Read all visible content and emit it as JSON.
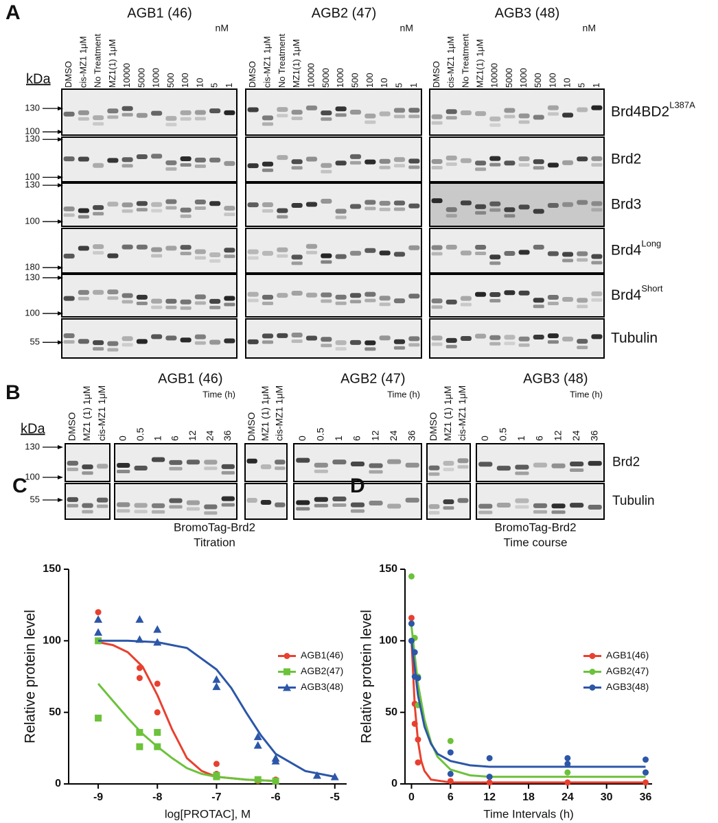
{
  "panel_a": {
    "letter": "A",
    "unit_kda": "kDa",
    "groups": [
      {
        "title": "AGB1 (46)",
        "unit": "nM"
      },
      {
        "title": "AGB2 (47)",
        "unit": "nM"
      },
      {
        "title": "AGB3 (48)",
        "unit": "nM"
      }
    ],
    "lanes": [
      "DMSO",
      "cis-MZ1 1μM",
      "No Treatment",
      "MZ1(1) 1μM",
      "10000",
      "5000",
      "1000",
      "500",
      "100",
      "10",
      "5",
      "1"
    ],
    "rows": [
      {
        "label": "Brd4BD2",
        "sup": "L387A",
        "markers": [
          130,
          100
        ]
      },
      {
        "label": "Brd2",
        "markers": [
          130,
          100
        ]
      },
      {
        "label": "Brd3",
        "markers": [
          130,
          100
        ]
      },
      {
        "label": "Brd4",
        "sup": "Long",
        "markers": [
          180
        ]
      },
      {
        "label": "Brd4",
        "sup": "Short",
        "markers": [
          130,
          100
        ]
      },
      {
        "label": "Tubulin",
        "markers": [
          55
        ]
      }
    ]
  },
  "panel_b": {
    "letter": "B",
    "unit_kda": "kDa",
    "groups": [
      {
        "title": "AGB1 (46)",
        "unit": "Time (h)"
      },
      {
        "title": "AGB2 (47)",
        "unit": "Time (h)"
      },
      {
        "title": "AGB3 (48)",
        "unit": "Time (h)"
      }
    ],
    "control_lanes": [
      "DMSO",
      "MZ1 (1) 1μM",
      "cis-MZ1 1μM"
    ],
    "time_lanes": [
      "0",
      "0.5",
      "1",
      "6",
      "12",
      "24",
      "36"
    ],
    "rows": [
      {
        "label": "Brd2"
      },
      {
        "label": "Tubulin"
      }
    ],
    "markers": [
      130,
      100,
      55
    ]
  },
  "chart_data": [
    {
      "panel_label": "C",
      "type": "scatter",
      "title": [
        "BromoTag-Brd2",
        "Titration"
      ],
      "x_label": "log[PROTAC], M",
      "y_label": "Relative protein level",
      "xlim": [
        -9.5,
        -4.8
      ],
      "ylim": [
        0,
        150
      ],
      "xticks": [
        -9,
        -8,
        -7,
        -6,
        -5
      ],
      "yticks": [
        0,
        50,
        100,
        150
      ],
      "legend": "center right",
      "series": [
        {
          "name": "AGB1(46)",
          "color": "#e8402f",
          "marker": "circle",
          "x": [
            -9,
            -9,
            -8.3,
            -8.3,
            -8,
            -8,
            -7,
            -7,
            -6.3,
            -6,
            -6
          ],
          "values": [
            120,
            100,
            81,
            74,
            70,
            50,
            14,
            7,
            2,
            2,
            3
          ],
          "fit": {
            "x": [
              -9,
              -8.75,
              -8.5,
              -8.25,
              -8,
              -7.75,
              -7.5,
              -7.25,
              -7,
              -6.5,
              -6
            ],
            "values": [
              99,
              97,
              92,
              82,
              62,
              38,
              18,
              9,
              5,
              3,
              2
            ]
          }
        },
        {
          "name": "AGB2(47)",
          "color": "#6cc23a",
          "marker": "square",
          "x": [
            -9,
            -9,
            -8.3,
            -8.3,
            -8,
            -8,
            -7,
            -7,
            -6.3,
            -6
          ],
          "values": [
            100,
            46,
            36,
            26,
            36,
            26,
            5,
            6,
            3,
            2
          ],
          "fit": {
            "x": [
              -9,
              -8.75,
              -8.5,
              -8.25,
              -8,
              -7.75,
              -7.5,
              -7.25,
              -7,
              -6.5,
              -6
            ],
            "values": [
              70,
              58,
              46,
              35,
              26,
              18,
              11,
              7,
              5,
              3,
              2
            ]
          }
        },
        {
          "name": "AGB3(48)",
          "color": "#2c56a8",
          "marker": "triangle",
          "x": [
            -9,
            -9,
            -8.3,
            -8.3,
            -8,
            -8,
            -7,
            -7,
            -6.3,
            -6.3,
            -6,
            -6,
            -5.3,
            -5
          ],
          "values": [
            115,
            106,
            115,
            101,
            108,
            99,
            73,
            68,
            33,
            27,
            18,
            16,
            6,
            5
          ],
          "fit": {
            "x": [
              -9,
              -8.5,
              -8,
              -7.5,
              -7,
              -6.75,
              -6.5,
              -6.25,
              -6,
              -5.5,
              -5
            ],
            "values": [
              100,
              100,
              99,
              95,
              80,
              67,
              50,
              34,
              21,
              9,
              5
            ]
          }
        }
      ]
    },
    {
      "panel_label": "D",
      "type": "scatter",
      "title": [
        "BromoTag-Brd2",
        "Time course"
      ],
      "x_label": "Time Intervals (h)",
      "y_label": "Relative protein level",
      "xlim": [
        -1,
        37
      ],
      "ylim": [
        0,
        150
      ],
      "xticks": [
        0,
        6,
        12,
        18,
        24,
        30,
        36
      ],
      "yticks": [
        0,
        50,
        100,
        150
      ],
      "legend": "center right",
      "series": [
        {
          "name": "AGB1(46)",
          "color": "#e8402f",
          "marker": "circle",
          "x": [
            0,
            0,
            0.5,
            0.5,
            1,
            1,
            6,
            12,
            24,
            36
          ],
          "values": [
            116,
            100,
            56,
            42,
            31,
            15,
            2,
            1,
            1,
            1
          ],
          "fit": {
            "x": [
              0,
              0.5,
              1,
              1.5,
              2,
              3,
              6,
              36
            ],
            "values": [
              100,
              55,
              30,
              16,
              9,
              3,
              1,
              1
            ]
          }
        },
        {
          "name": "AGB2(47)",
          "color": "#6cc23a",
          "marker": "circle",
          "x": [
            0,
            0,
            0.5,
            1,
            1,
            6,
            12,
            24,
            36
          ],
          "values": [
            145,
            112,
            102,
            75,
            55,
            30,
            5,
            8,
            8
          ],
          "fit": {
            "x": [
              0,
              1,
              2,
              3,
              4,
              6,
              9,
              12,
              18,
              36
            ],
            "values": [
              110,
              70,
              45,
              29,
              19,
              10,
              6,
              5,
              5,
              5
            ]
          }
        },
        {
          "name": "AGB3(48)",
          "color": "#2c56a8",
          "marker": "circle",
          "x": [
            0,
            0,
            0.5,
            0.5,
            1,
            6,
            6,
            12,
            12,
            24,
            24,
            36,
            36
          ],
          "values": [
            112,
            100,
            92,
            75,
            74,
            22,
            7,
            18,
            5,
            18,
            14,
            17,
            8
          ],
          "fit": {
            "x": [
              0,
              1,
              2,
              3,
              4,
              6,
              9,
              12,
              18,
              36
            ],
            "values": [
              100,
              62,
              40,
              28,
              21,
              16,
              13,
              12,
              12,
              12
            ]
          }
        }
      ]
    }
  ]
}
